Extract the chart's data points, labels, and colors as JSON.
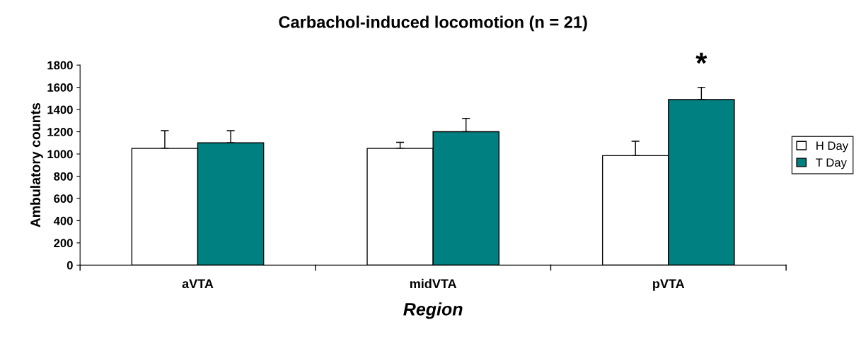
{
  "chart_data": {
    "type": "bar",
    "title": "Carbachol-induced locomotion (n = 21)",
    "xlabel": "Region",
    "ylabel": "Ambulatory counts",
    "categories": [
      "aVTA",
      "midVTA",
      "pVTA"
    ],
    "series": [
      {
        "name": "H Day",
        "color": "#ffffff",
        "values": [
          1050,
          1050,
          985
        ],
        "errors": [
          [
            1050,
            1210
          ],
          [
            1050,
            1105
          ],
          [
            985,
            1115
          ]
        ]
      },
      {
        "name": "T Day",
        "color": "#008080",
        "values": [
          1100,
          1200,
          1490
        ],
        "errors": [
          [
            1100,
            1210
          ],
          [
            1200,
            1320
          ],
          [
            1490,
            1600
          ]
        ]
      }
    ],
    "ylim": [
      0,
      1800
    ],
    "yticks": [
      0,
      200,
      400,
      600,
      800,
      1000,
      1200,
      1400,
      1600,
      1800
    ],
    "grid": false,
    "legend": "right",
    "annotations": [
      "*"
    ]
  }
}
